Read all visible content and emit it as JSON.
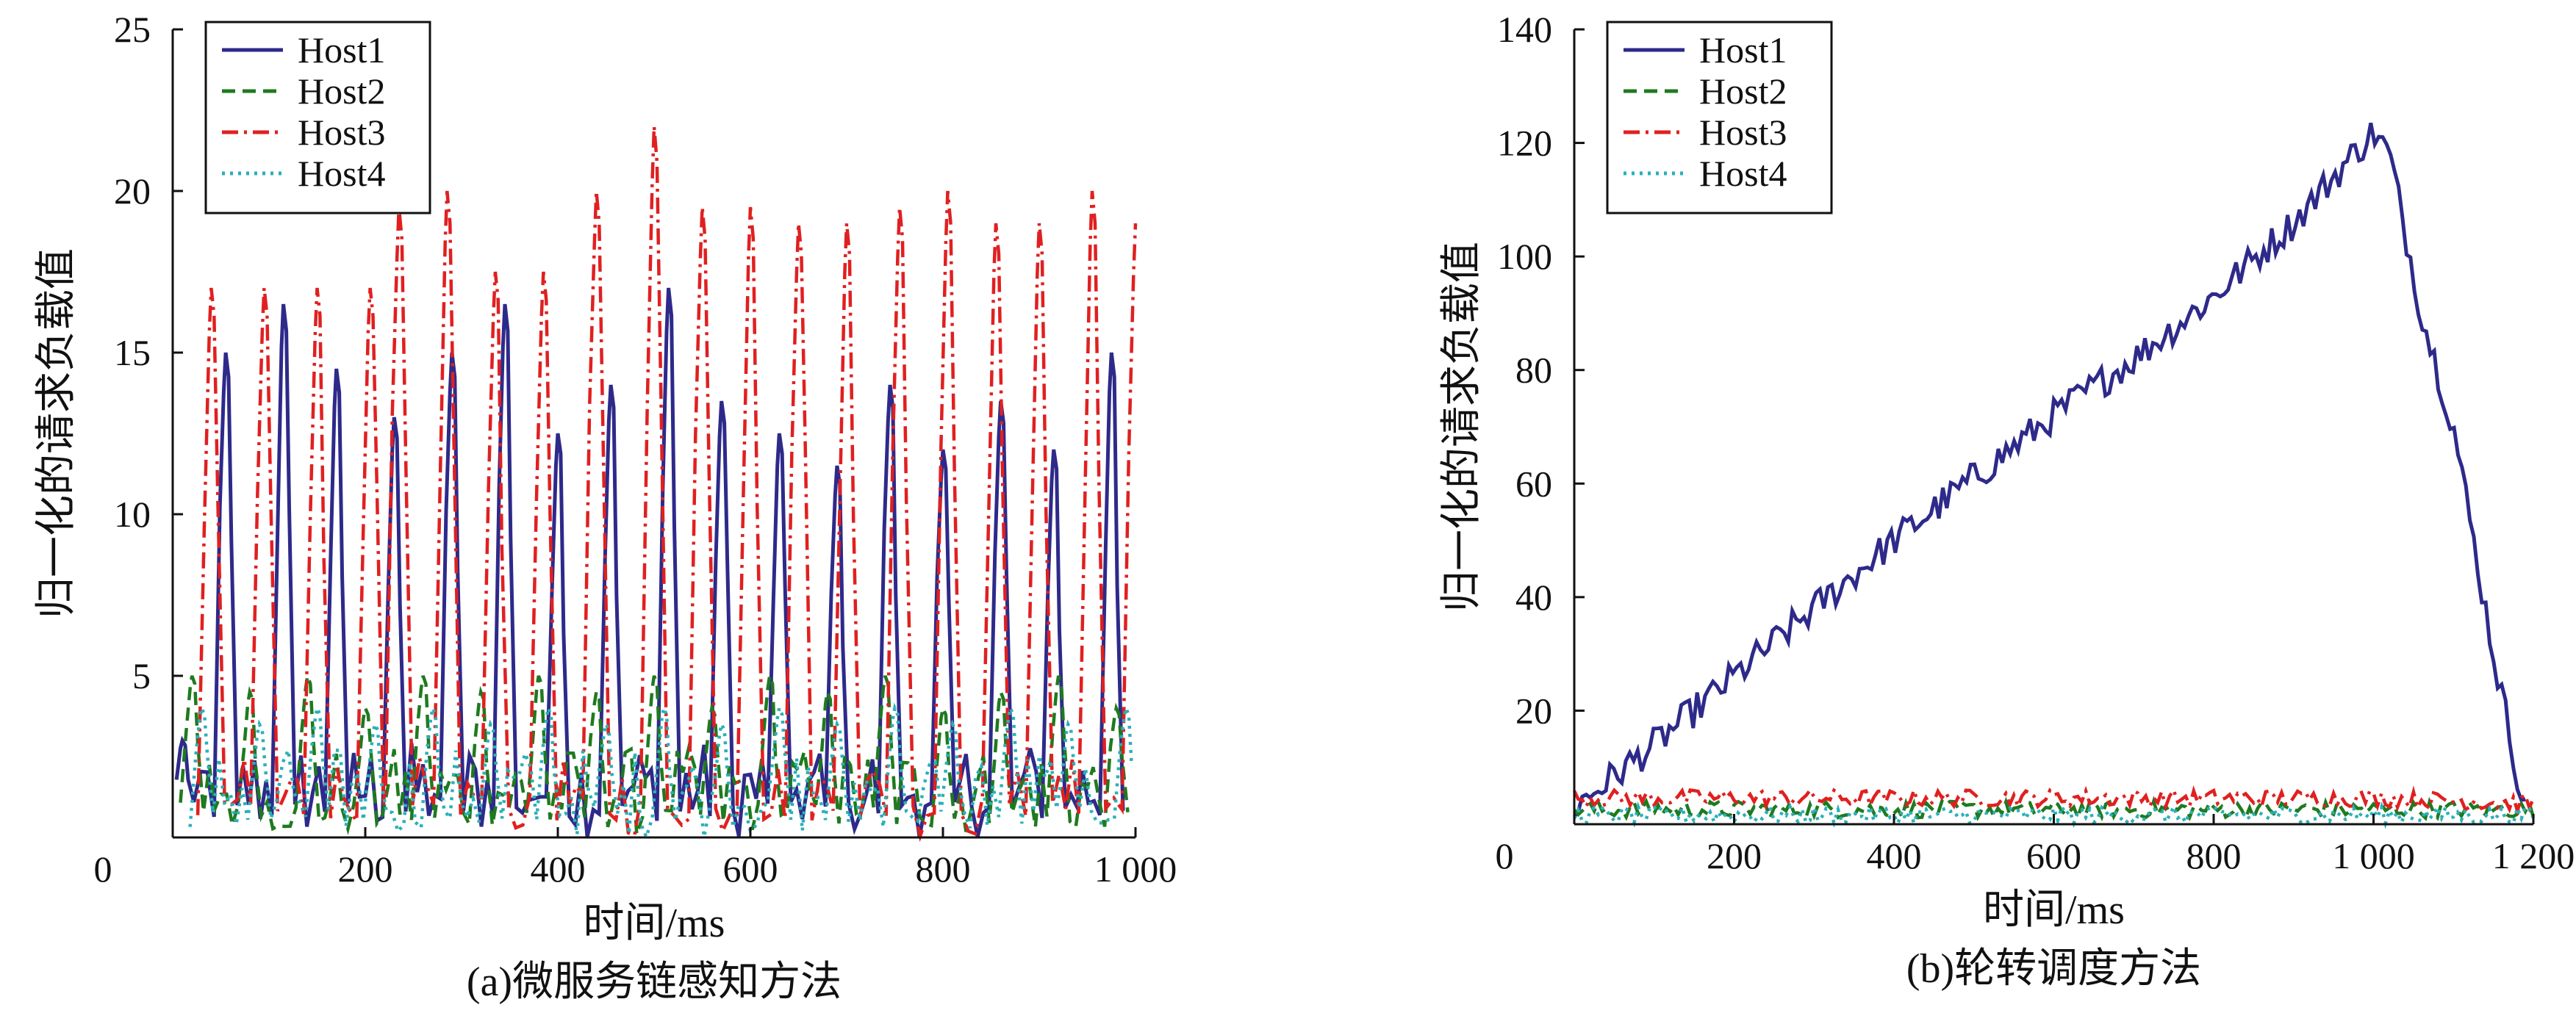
{
  "chart_data": [
    {
      "type": "line",
      "id": "a",
      "caption": "(a)微服务链感知方法",
      "xlabel": "时间/ms",
      "ylabel": "归一化的请求负载值",
      "xlim": [
        0,
        1000
      ],
      "ylim": [
        0,
        25
      ],
      "x_ticks": [
        0,
        200,
        400,
        600,
        800,
        1000
      ],
      "x_tick_labels": [
        "0",
        "200",
        "400",
        "600",
        "800",
        "1 000"
      ],
      "y_ticks": [
        5,
        10,
        15,
        20,
        25
      ],
      "y_tick_labels": [
        "5",
        "10",
        "15",
        "20",
        "25"
      ],
      "legend_position": "top-left",
      "grid": false,
      "series": [
        {
          "name": "Host1",
          "color": "#2e2a8a",
          "dash": "solid",
          "peaks": [
            {
              "x": 10,
              "y": 3
            },
            {
              "x": 55,
              "y": 15
            },
            {
              "x": 115,
              "y": 16.5
            },
            {
              "x": 170,
              "y": 14.5
            },
            {
              "x": 230,
              "y": 13
            },
            {
              "x": 290,
              "y": 15
            },
            {
              "x": 345,
              "y": 16.5
            },
            {
              "x": 400,
              "y": 12.5
            },
            {
              "x": 455,
              "y": 14
            },
            {
              "x": 515,
              "y": 17
            },
            {
              "x": 570,
              "y": 13.5
            },
            {
              "x": 630,
              "y": 12.5
            },
            {
              "x": 690,
              "y": 11.5
            },
            {
              "x": 745,
              "y": 14
            },
            {
              "x": 800,
              "y": 12
            },
            {
              "x": 860,
              "y": 13.5
            },
            {
              "x": 915,
              "y": 12
            },
            {
              "x": 975,
              "y": 15
            }
          ]
        },
        {
          "name": "Host2",
          "color": "#1f7a1f",
          "dash": "dashed",
          "peaks": [
            {
              "x": 20,
              "y": 5
            },
            {
              "x": 80,
              "y": 4.5
            },
            {
              "x": 140,
              "y": 5
            },
            {
              "x": 200,
              "y": 4
            },
            {
              "x": 260,
              "y": 5
            },
            {
              "x": 320,
              "y": 4.5
            },
            {
              "x": 380,
              "y": 5
            },
            {
              "x": 440,
              "y": 4.5
            },
            {
              "x": 500,
              "y": 5
            },
            {
              "x": 560,
              "y": 4
            },
            {
              "x": 620,
              "y": 5
            },
            {
              "x": 680,
              "y": 4.5
            },
            {
              "x": 740,
              "y": 5
            },
            {
              "x": 800,
              "y": 4
            },
            {
              "x": 860,
              "y": 4.5
            },
            {
              "x": 920,
              "y": 5
            },
            {
              "x": 980,
              "y": 4
            }
          ]
        },
        {
          "name": "Host3",
          "color": "#e02020",
          "dash": "dashdot",
          "peaks": [
            {
              "x": 40,
              "y": 17
            },
            {
              "x": 95,
              "y": 17
            },
            {
              "x": 150,
              "y": 17
            },
            {
              "x": 205,
              "y": 17
            },
            {
              "x": 235,
              "y": 19.5
            },
            {
              "x": 285,
              "y": 20
            },
            {
              "x": 335,
              "y": 17.5
            },
            {
              "x": 385,
              "y": 17.5
            },
            {
              "x": 440,
              "y": 20
            },
            {
              "x": 500,
              "y": 22
            },
            {
              "x": 550,
              "y": 19.5
            },
            {
              "x": 600,
              "y": 19.5
            },
            {
              "x": 650,
              "y": 19
            },
            {
              "x": 700,
              "y": 19
            },
            {
              "x": 755,
              "y": 19.5
            },
            {
              "x": 805,
              "y": 20
            },
            {
              "x": 855,
              "y": 19
            },
            {
              "x": 900,
              "y": 19
            },
            {
              "x": 955,
              "y": 20
            },
            {
              "x": 1000,
              "y": 19
            }
          ]
        },
        {
          "name": "Host4",
          "color": "#2ab0b8",
          "dash": "dotted",
          "peaks": [
            {
              "x": 30,
              "y": 4
            },
            {
              "x": 90,
              "y": 3.5
            },
            {
              "x": 150,
              "y": 4
            },
            {
              "x": 210,
              "y": 3.5
            },
            {
              "x": 270,
              "y": 4
            },
            {
              "x": 330,
              "y": 3.5
            },
            {
              "x": 390,
              "y": 4
            },
            {
              "x": 450,
              "y": 3.5
            },
            {
              "x": 510,
              "y": 4
            },
            {
              "x": 570,
              "y": 3.5
            },
            {
              "x": 630,
              "y": 4
            },
            {
              "x": 690,
              "y": 3.5
            },
            {
              "x": 750,
              "y": 4
            },
            {
              "x": 810,
              "y": 3.5
            },
            {
              "x": 870,
              "y": 4
            },
            {
              "x": 930,
              "y": 3.5
            },
            {
              "x": 990,
              "y": 4
            }
          ]
        }
      ]
    },
    {
      "type": "line",
      "id": "b",
      "caption": "(b)轮转调度方法",
      "xlabel": "时间/ms",
      "ylabel": "归一化的请求负载值",
      "xlim": [
        0,
        1200
      ],
      "ylim": [
        0,
        140
      ],
      "x_ticks": [
        0,
        200,
        400,
        600,
        800,
        1000,
        1200
      ],
      "x_tick_labels": [
        "0",
        "200",
        "400",
        "600",
        "800",
        "1 000",
        "1 200"
      ],
      "y_ticks": [
        20,
        40,
        60,
        80,
        100,
        120,
        140
      ],
      "y_tick_labels": [
        "20",
        "40",
        "60",
        "80",
        "100",
        "120",
        "140"
      ],
      "legend_position": "top-left",
      "grid": false,
      "series": [
        {
          "name": "Host1",
          "color": "#2e2a8a",
          "dash": "solid",
          "x": [
            0,
            100,
            200,
            300,
            400,
            500,
            600,
            700,
            800,
            900,
            1000,
            1020,
            1060,
            1100,
            1150,
            1190
          ],
          "y": [
            3,
            14,
            26,
            38,
            50,
            61,
            72,
            82,
            93,
            106,
            122,
            118,
            90,
            70,
            30,
            2
          ]
        },
        {
          "name": "Host2",
          "color": "#1f7a1f",
          "dash": "dashed",
          "x": [
            0,
            200,
            400,
            600,
            800,
            1000,
            1200
          ],
          "y": [
            2,
            2,
            2,
            2,
            2,
            2,
            2
          ]
        },
        {
          "name": "Host3",
          "color": "#e02020",
          "dash": "dashdot",
          "x": [
            0,
            200,
            400,
            600,
            800,
            1000,
            1200
          ],
          "y": [
            4,
            4,
            4,
            4,
            4,
            4,
            3
          ]
        },
        {
          "name": "Host4",
          "color": "#2ab0b8",
          "dash": "dotted",
          "x": [
            0,
            200,
            400,
            600,
            800,
            1000,
            1200
          ],
          "y": [
            1,
            1,
            1,
            1,
            1,
            1,
            1
          ]
        }
      ]
    }
  ]
}
